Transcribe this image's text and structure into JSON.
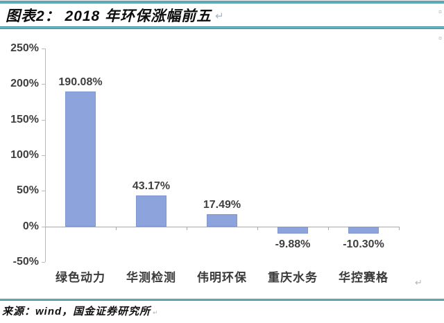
{
  "header": {
    "title": "图表2： 2018 年环保涨幅前五",
    "return_mark": "↵",
    "cell_mark": "¤"
  },
  "chart_data": {
    "type": "bar",
    "title": "2018 年环保涨幅前五",
    "categories": [
      "绿色动力",
      "华测检测",
      "伟明环保",
      "重庆水务",
      "华控赛格"
    ],
    "values": [
      190.08,
      43.17,
      17.49,
      -9.88,
      -10.3
    ],
    "value_labels": [
      "190.08%",
      "43.17%",
      "17.49%",
      "-9.88%",
      "-10.30%"
    ],
    "xlabel": "",
    "ylabel": "",
    "ylim": [
      -50,
      250
    ],
    "yticks": [
      250,
      200,
      150,
      100,
      50,
      0,
      -50
    ],
    "ytick_labels": [
      "250%",
      "200%",
      "150%",
      "100%",
      "50%",
      "0%",
      "-50%"
    ],
    "grid": false,
    "legend": null,
    "bar_color": "#8ca3db",
    "bar_border_color": "#7e97d0",
    "axis_color": "#a8a8a8",
    "yaxis_color": "#b9b9b9",
    "label_color": "#3f3f3f",
    "return_mark": "↵"
  },
  "footer": {
    "source": "来源：wind，国金证券研究所",
    "end_mark": "↵"
  },
  "colors": {
    "rule_teal": "#2a8496",
    "rule_teal_light": "#7ec4cf",
    "title_text": "#0d0d0d"
  }
}
